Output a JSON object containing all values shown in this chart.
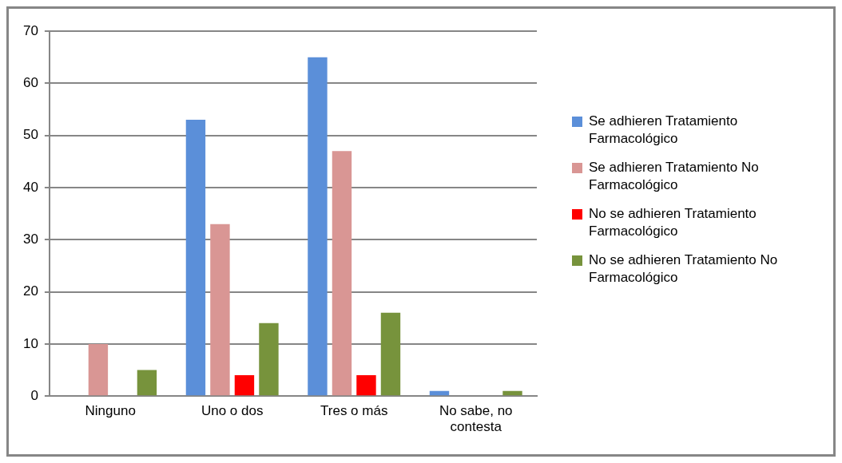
{
  "chart_data": {
    "type": "bar",
    "categories": [
      "Ninguno",
      "Uno o dos",
      "Tres o más",
      "No sabe, no contesta"
    ],
    "series": [
      {
        "name": "Se adhieren Tratamiento Farmacológico",
        "color": "#5b8fd9",
        "values": [
          0,
          53,
          65,
          1
        ]
      },
      {
        "name": "Se adhieren Tratamiento No Farmacológico",
        "color": "#d99694",
        "values": [
          10,
          33,
          47,
          0
        ]
      },
      {
        "name": "No se adhieren Tratamiento Farmacológico",
        "color": "#ff0000",
        "values": [
          0,
          4,
          4,
          0
        ]
      },
      {
        "name": "No se adhieren Tratamiento No Farmacológico",
        "color": "#77933c",
        "values": [
          5,
          14,
          16,
          1
        ]
      }
    ],
    "ylim": [
      0,
      70
    ],
    "yticks": [
      0,
      10,
      20,
      30,
      40,
      50,
      60,
      70
    ],
    "grid": "y",
    "legend": "right"
  }
}
